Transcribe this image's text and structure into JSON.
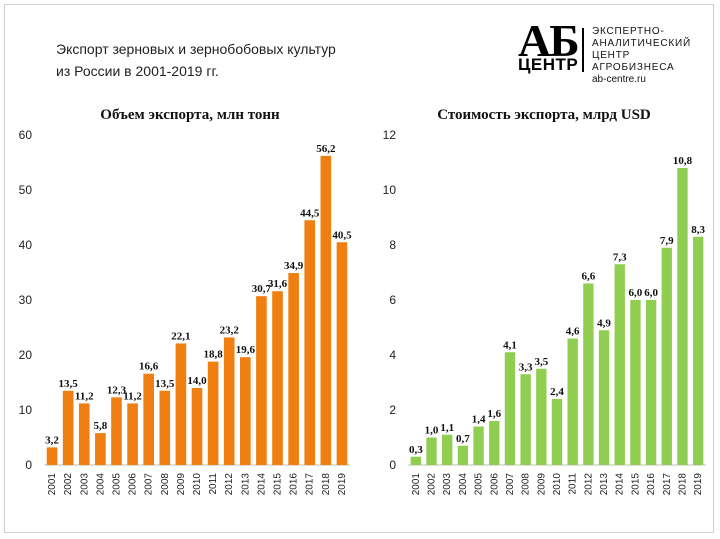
{
  "header": {
    "title_line1": "Экспорт зерновых и зернобобовых культур",
    "title_line2": "из России в 2001-2019 гг."
  },
  "logo": {
    "mark": "АБ",
    "mark_sub": "ЦЕНТР",
    "text_lines": [
      "ЭКСПЕРТНО-",
      "АНАЛИТИЧЕСКИЙ",
      "ЦЕНТР",
      "АГРОБИЗНЕСА"
    ],
    "url": "ab-centre.ru"
  },
  "chart_data": [
    {
      "type": "bar",
      "title": "Объем экспорта,  млн тонн",
      "categories": [
        "2001",
        "2002",
        "2003",
        "2004",
        "2005",
        "2006",
        "2007",
        "2008",
        "2009",
        "2010",
        "2011",
        "2012",
        "2013",
        "2014",
        "2015",
        "2016",
        "2017",
        "2018",
        "2019"
      ],
      "values": [
        3.2,
        13.5,
        11.2,
        5.8,
        12.3,
        11.2,
        16.6,
        13.5,
        22.1,
        14.0,
        18.8,
        23.2,
        19.6,
        30.7,
        31.6,
        34.9,
        44.5,
        56.2,
        40.5
      ],
      "data_labels": [
        "3,2",
        "13,5",
        "11,2",
        "5,8",
        "12,3",
        "11,2",
        "16,6",
        "13,5",
        "22,1",
        "14,0",
        "18,8",
        "23,2",
        "19,6",
        "30,7",
        "31,6",
        "34,9",
        "44,5",
        "56,2",
        "40,5"
      ],
      "ylim": [
        0,
        60
      ],
      "yticks": [
        "0",
        "10",
        "20",
        "30",
        "40",
        "50",
        "60"
      ],
      "color": "#f07f12",
      "grid": false
    },
    {
      "type": "bar",
      "title": "Стоимость экспорта, млрд USD",
      "categories": [
        "2001",
        "2002",
        "2003",
        "2004",
        "2005",
        "2006",
        "2007",
        "2008",
        "2009",
        "2010",
        "2011",
        "2012",
        "2013",
        "2014",
        "2015",
        "2016",
        "2017",
        "2018",
        "2019"
      ],
      "values": [
        0.3,
        1.0,
        1.1,
        0.7,
        1.4,
        1.6,
        4.1,
        3.3,
        3.5,
        2.4,
        4.6,
        6.6,
        4.9,
        7.3,
        6.0,
        6.0,
        7.9,
        10.8,
        8.3
      ],
      "data_labels": [
        "0,3",
        "1,0",
        "1,1",
        "0,7",
        "1,4",
        "1,6",
        "4,1",
        "3,3",
        "3,5",
        "2,4",
        "4,6",
        "6,6",
        "4,9",
        "7,3",
        "6,0",
        "6,0",
        "7,9",
        "10,8",
        "8,3"
      ],
      "ylim": [
        0,
        12
      ],
      "yticks": [
        "0",
        "2",
        "4",
        "6",
        "8",
        "10",
        "12"
      ],
      "color": "#8fce50",
      "grid": false
    }
  ]
}
